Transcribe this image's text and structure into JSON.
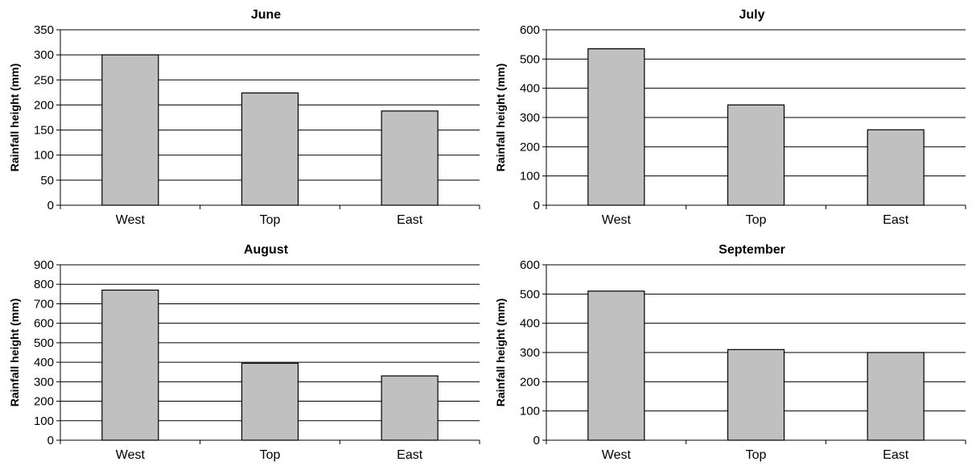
{
  "chart_data": [
    {
      "type": "bar",
      "title": "June",
      "ylabel": "Rainfall height (mm)",
      "xlabel": "",
      "categories": [
        "West",
        "Top",
        "East"
      ],
      "values": [
        300,
        224,
        188
      ],
      "ylim": [
        0,
        350
      ],
      "yticks": [
        0,
        50,
        100,
        150,
        200,
        250,
        300,
        350
      ],
      "grid": true,
      "bar_color": "#c0c0c0"
    },
    {
      "type": "bar",
      "title": "July",
      "ylabel": "Rainfall height (mm)",
      "xlabel": "",
      "categories": [
        "West",
        "Top",
        "East"
      ],
      "values": [
        535,
        343,
        258
      ],
      "ylim": [
        0,
        600
      ],
      "yticks": [
        0,
        100,
        200,
        300,
        400,
        500,
        600
      ],
      "grid": true,
      "bar_color": "#c0c0c0"
    },
    {
      "type": "bar",
      "title": "August",
      "ylabel": "Rainfall height (mm)",
      "xlabel": "",
      "categories": [
        "West",
        "Top",
        "East"
      ],
      "values": [
        770,
        395,
        330
      ],
      "ylim": [
        0,
        900
      ],
      "yticks": [
        0,
        100,
        200,
        300,
        400,
        500,
        600,
        700,
        800,
        900
      ],
      "grid": true,
      "bar_color": "#c0c0c0"
    },
    {
      "type": "bar",
      "title": "September",
      "ylabel": "Rainfall height (mm)",
      "xlabel": "",
      "categories": [
        "West",
        "Top",
        "East"
      ],
      "values": [
        510,
        310,
        300
      ],
      "ylim": [
        0,
        600
      ],
      "yticks": [
        0,
        100,
        200,
        300,
        400,
        500,
        600
      ],
      "grid": true,
      "bar_color": "#c0c0c0"
    }
  ]
}
